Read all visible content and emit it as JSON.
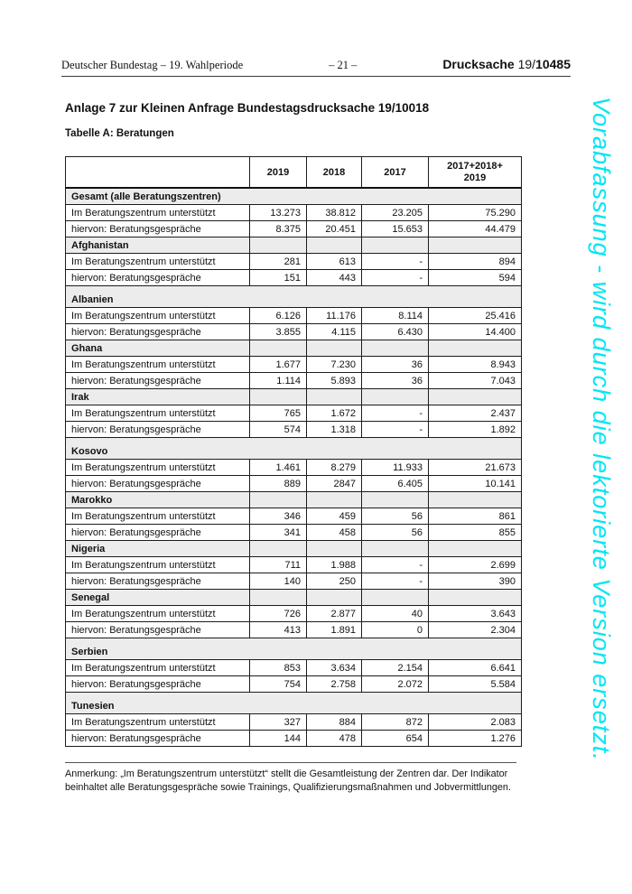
{
  "page_header": {
    "left": "Deutscher Bundestag – 19. Wahlperiode",
    "center": "– 21 –",
    "right_label": "Drucksache",
    "right_session": "19/",
    "right_number": "10485"
  },
  "title": "Anlage 7 zur Kleinen Anfrage Bundestagsdrucksache 19/10018",
  "subtitle": "Tabelle A: Beratungen",
  "watermark": {
    "text": "Vorabfassung - wird durch die lektorierte Version ersetzt.",
    "color": "#00e6f4"
  },
  "table": {
    "columns": [
      "",
      "2019",
      "2018",
      "2017",
      "2017+2018+\n2019"
    ],
    "row_labels": {
      "supported": "Im Beratungszentrum unterstützt",
      "consultations": "hiervon: Beratungsgespräche"
    },
    "sections": [
      {
        "name": "Gesamt (alle Beratungszentren)",
        "span": true,
        "tall": false,
        "supported": [
          "13.273",
          "38.812",
          "23.205",
          "75.290"
        ],
        "consultations": [
          "8.375",
          "20.451",
          "15.653",
          "44.479"
        ]
      },
      {
        "name": "Afghanistan",
        "span": false,
        "tall": false,
        "supported": [
          "281",
          "613",
          "-",
          "894"
        ],
        "consultations": [
          "151",
          "443",
          "-",
          "594"
        ]
      },
      {
        "name": "Albanien",
        "span": true,
        "tall": true,
        "supported": [
          "6.126",
          "11.176",
          "8.114",
          "25.416"
        ],
        "consultations": [
          "3.855",
          "4.115",
          "6.430",
          "14.400"
        ]
      },
      {
        "name": "Ghana",
        "span": false,
        "tall": false,
        "supported": [
          "1.677",
          "7.230",
          "36",
          "8.943"
        ],
        "consultations": [
          "1.114",
          "5.893",
          "36",
          "7.043"
        ]
      },
      {
        "name": "Irak",
        "span": false,
        "tall": false,
        "supported": [
          "765",
          "1.672",
          "-",
          "2.437"
        ],
        "consultations": [
          "574",
          "1.318",
          "-",
          "1.892"
        ]
      },
      {
        "name": "Kosovo",
        "span": true,
        "tall": true,
        "supported": [
          "1.461",
          "8.279",
          "11.933",
          "21.673"
        ],
        "consultations": [
          "889",
          "2847",
          "6.405",
          "10.141"
        ]
      },
      {
        "name": "Marokko",
        "span": false,
        "tall": false,
        "supported": [
          "346",
          "459",
          "56",
          "861"
        ],
        "consultations": [
          "341",
          "458",
          "56",
          "855"
        ]
      },
      {
        "name": "Nigeria",
        "span": false,
        "tall": false,
        "supported": [
          "711",
          "1.988",
          "-",
          "2.699"
        ],
        "consultations": [
          "140",
          "250",
          "-",
          "390"
        ]
      },
      {
        "name": "Senegal",
        "span": false,
        "tall": false,
        "supported": [
          "726",
          "2.877",
          "40",
          "3.643"
        ],
        "consultations": [
          "413",
          "1.891",
          "0",
          "2.304"
        ]
      },
      {
        "name": "Serbien",
        "span": true,
        "tall": true,
        "supported": [
          "853",
          "3.634",
          "2.154",
          "6.641"
        ],
        "consultations": [
          "754",
          "2.758",
          "2.072",
          "5.584"
        ]
      },
      {
        "name": "Tunesien",
        "span": true,
        "tall": true,
        "supported": [
          "327",
          "884",
          "872",
          "2.083"
        ],
        "consultations": [
          "144",
          "478",
          "654",
          "1.276"
        ]
      }
    ]
  },
  "note": "Anmerkung: „Im Beratungszentrum unterstützt“ stellt die Gesamtleistung der Zentren dar. Der Indikator beinhaltet alle Beratungsgespräche sowie Trainings, Qualifizierungsmaßnahmen und Jobvermittlungen."
}
